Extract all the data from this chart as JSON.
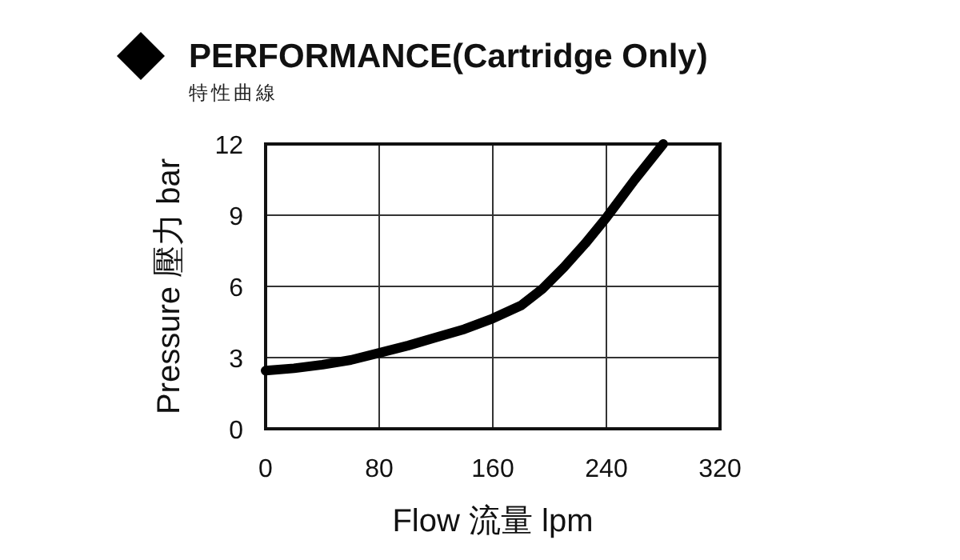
{
  "chart_data": {
    "type": "line",
    "title": "PERFORMANCE(Cartridge Only)",
    "subtitle": "特性曲線",
    "xlabel": "Flow 流量 lpm",
    "ylabel": "Pressure 壓力 bar",
    "x": [
      0,
      20,
      40,
      60,
      80,
      100,
      120,
      140,
      160,
      180,
      195,
      210,
      225,
      240,
      260,
      280
    ],
    "series": [
      {
        "color": "#000000",
        "values": [
          2.45,
          2.55,
          2.7,
          2.9,
          3.2,
          3.5,
          3.85,
          4.2,
          4.65,
          5.2,
          5.9,
          6.8,
          7.8,
          8.9,
          10.5,
          12
        ]
      }
    ],
    "xlim": [
      0,
      320
    ],
    "xticks": [
      0,
      80,
      160,
      240,
      320
    ],
    "ylim": [
      0,
      12
    ],
    "yticks": [
      0,
      3,
      6,
      9,
      12
    ],
    "grid": true,
    "line_style": "solid"
  }
}
